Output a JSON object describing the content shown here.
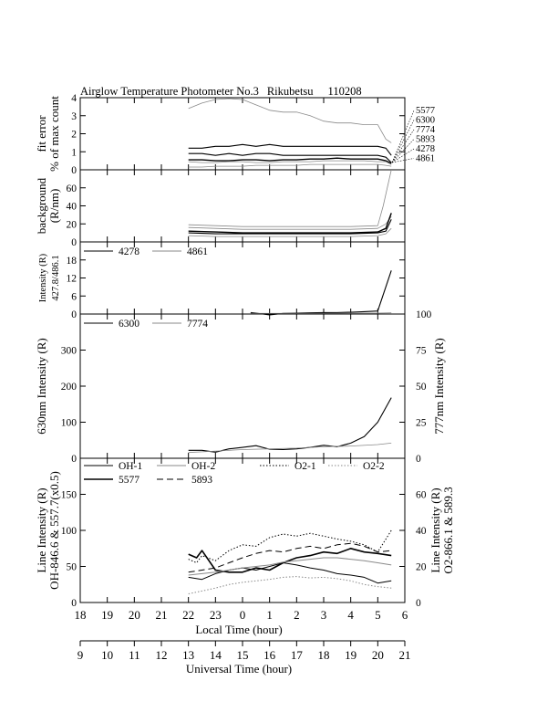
{
  "title": {
    "instrument": "Airglow Temperature Photometer No.3",
    "station": "Rikubetsu",
    "date": "110208"
  },
  "x_axes": {
    "local": {
      "label": "Local Time (hour)",
      "ticks": [
        "18",
        "19",
        "20",
        "21",
        "22",
        "23",
        "0",
        "1",
        "2",
        "3",
        "4",
        "5",
        "6"
      ]
    },
    "universal": {
      "label": "Universal Time (hour)",
      "ticks": [
        "9",
        "10",
        "11",
        "12",
        "13",
        "14",
        "15",
        "16",
        "17",
        "18",
        "19",
        "20",
        "21"
      ]
    }
  },
  "colors": {
    "ink": "#000000",
    "light": "#8a8a8a"
  },
  "chart_data": [
    {
      "id": "fit_error",
      "type": "line",
      "ylabel": [
        "fit error",
        "% of max count"
      ],
      "ylim": [
        0,
        4
      ],
      "yticks": [
        0,
        1,
        2,
        3,
        4
      ],
      "legend_right": [
        "5577",
        "6300",
        "7774",
        "5893",
        "4278",
        "4861"
      ],
      "series": [
        {
          "color": "light",
          "width": 0.8,
          "x": [
            22.0,
            22.5,
            23.0,
            23.5,
            0.0,
            0.5,
            1.0,
            1.5,
            2.0,
            2.5,
            3.0,
            3.5,
            4.0,
            4.5,
            5.0,
            5.3,
            5.5
          ],
          "y": [
            3.4,
            3.7,
            3.9,
            3.95,
            3.9,
            3.6,
            3.3,
            3.2,
            3.2,
            3.0,
            2.7,
            2.6,
            2.6,
            2.5,
            2.5,
            1.7,
            1.5
          ]
        },
        {
          "color": "ink",
          "width": 1.1,
          "x": [
            22.0,
            22.5,
            23.0,
            23.5,
            0.0,
            0.5,
            1.0,
            1.5,
            2.0,
            2.5,
            3.0,
            3.5,
            4.0,
            4.5,
            5.0,
            5.3,
            5.5
          ],
          "y": [
            1.2,
            1.2,
            1.3,
            1.3,
            1.4,
            1.3,
            1.4,
            1.3,
            1.3,
            1.3,
            1.3,
            1.3,
            1.3,
            1.3,
            1.3,
            1.2,
            0.8
          ]
        },
        {
          "color": "ink",
          "width": 1.1,
          "x": [
            22.0,
            22.5,
            23.0,
            23.5,
            0.0,
            0.5,
            1.0,
            1.5,
            2.0,
            2.5,
            3.0,
            3.5,
            4.0,
            4.5,
            5.0,
            5.3,
            5.5
          ],
          "y": [
            0.9,
            0.9,
            0.8,
            0.9,
            0.8,
            0.9,
            0.9,
            0.8,
            0.8,
            0.8,
            0.8,
            0.8,
            0.8,
            0.8,
            0.8,
            0.7,
            0.4
          ]
        },
        {
          "color": "ink",
          "width": 1.4,
          "x": [
            22.0,
            22.5,
            23.0,
            23.5,
            0.0,
            0.5,
            1.0,
            1.5,
            2.0,
            2.5,
            3.0,
            3.5,
            4.0,
            4.5,
            5.0,
            5.3,
            5.5
          ],
          "y": [
            0.55,
            0.55,
            0.5,
            0.5,
            0.55,
            0.55,
            0.5,
            0.55,
            0.55,
            0.6,
            0.6,
            0.65,
            0.6,
            0.6,
            0.6,
            0.5,
            0.35
          ]
        },
        {
          "color": "light",
          "width": 0.8,
          "x": [
            22.0,
            22.5,
            23.0,
            23.5,
            0.0,
            0.5,
            1.0,
            1.5,
            2.0,
            2.5,
            3.0,
            3.5,
            4.0,
            4.5,
            5.0,
            5.3,
            5.5
          ],
          "y": [
            0.45,
            0.4,
            0.4,
            0.45,
            0.45,
            0.4,
            0.4,
            0.45,
            0.45,
            0.45,
            0.5,
            0.5,
            0.5,
            0.5,
            0.45,
            0.45,
            0.3
          ]
        },
        {
          "color": "light",
          "width": 0.8,
          "x": [
            22.0,
            22.5,
            23.0,
            23.5,
            0.0,
            0.5,
            1.0,
            1.5,
            2.0,
            2.5,
            3.0,
            3.5,
            4.0,
            4.5,
            5.0,
            5.3,
            5.5
          ],
          "y": [
            0.15,
            0.15,
            0.2,
            0.2,
            0.2,
            0.25,
            0.25,
            0.25,
            0.25,
            0.3,
            0.3,
            0.3,
            0.3,
            0.3,
            0.3,
            0.25,
            0.2
          ]
        }
      ]
    },
    {
      "id": "background",
      "type": "line",
      "ylabel": [
        "background",
        "(R/nm)"
      ],
      "ylim": [
        0,
        80
      ],
      "yticks": [
        0,
        20,
        40,
        60
      ],
      "series": [
        {
          "color": "light",
          "width": 0.8,
          "x": [
            22.0,
            23.0,
            0.0,
            1.0,
            2.0,
            3.0,
            4.0,
            5.0,
            5.2,
            5.5
          ],
          "y": [
            19,
            18,
            17,
            17,
            17,
            17,
            17,
            18,
            40,
            80
          ]
        },
        {
          "color": "light",
          "width": 0.8,
          "x": [
            22.0,
            23.0,
            0.0,
            1.0,
            2.0,
            3.0,
            4.0,
            5.0,
            5.3,
            5.5
          ],
          "y": [
            16,
            15,
            14,
            14,
            14,
            14,
            14,
            15,
            20,
            28
          ]
        },
        {
          "color": "ink",
          "width": 1.4,
          "x": [
            22.0,
            23.0,
            0.0,
            1.0,
            2.0,
            3.0,
            4.0,
            5.0,
            5.3,
            5.5
          ],
          "y": [
            12,
            11,
            10,
            10,
            10,
            10,
            10,
            11,
            15,
            32
          ]
        },
        {
          "color": "ink",
          "width": 1.1,
          "x": [
            22.0,
            23.0,
            0.0,
            1.0,
            2.0,
            3.0,
            4.0,
            5.0,
            5.3,
            5.5
          ],
          "y": [
            10,
            9,
            9,
            9,
            9,
            9,
            9,
            10,
            12,
            25
          ]
        },
        {
          "color": "light",
          "width": 0.8,
          "x": [
            22.0,
            23.0,
            0.0,
            1.0,
            2.0,
            3.0,
            4.0,
            5.0,
            5.3,
            5.5
          ],
          "y": [
            7,
            6,
            6,
            6,
            6,
            6,
            6,
            7,
            9,
            15
          ]
        }
      ]
    },
    {
      "id": "intensity_4278_4861",
      "type": "line",
      "ylabel": [
        "Intensity (R)",
        "427.8/486.1"
      ],
      "ylim": [
        0,
        24
      ],
      "yticks": [
        0,
        6,
        12,
        18
      ],
      "legend": [
        {
          "name": "4278",
          "color": "ink"
        },
        {
          "name": "4861",
          "color": "light"
        }
      ],
      "series": [
        {
          "name": "4278",
          "color": "ink",
          "width": 1.1,
          "x": [
            0.3,
            0.5,
            1.0,
            1.5,
            2.0,
            2.5,
            3.0,
            3.5,
            4.0,
            4.5,
            5.0,
            5.5
          ],
          "y": [
            0.5,
            0.3,
            -0.3,
            0.2,
            0.3,
            0.4,
            0.5,
            0.5,
            0.6,
            0.8,
            1.0,
            14.5
          ]
        },
        {
          "name": "4861",
          "color": "light",
          "width": 0.8,
          "x": [
            0.3,
            1.0,
            2.0,
            3.0,
            4.0,
            5.0,
            5.5
          ],
          "y": [
            0.2,
            0.2,
            0.2,
            0.2,
            0.3,
            0.3,
            0.4
          ]
        }
      ]
    },
    {
      "id": "intensity_6300_7774",
      "type": "line",
      "ylabel_left": "630nm Intensity (R)",
      "ylabel_right": "777nm Intensity (R)",
      "ylim_left": [
        0,
        400
      ],
      "ylim_right": [
        0,
        100
      ],
      "yticks_left": [
        0,
        100,
        200,
        300
      ],
      "yticks_right": [
        0,
        25,
        50,
        75,
        100
      ],
      "legend": [
        {
          "name": "6300",
          "color": "ink"
        },
        {
          "name": "7774",
          "color": "light"
        }
      ],
      "series": [
        {
          "name": "6300",
          "color": "ink",
          "width": 1.1,
          "axis": "left",
          "x": [
            22.0,
            22.5,
            23.0,
            23.5,
            0.0,
            0.5,
            1.0,
            1.5,
            2.0,
            2.5,
            3.0,
            3.5,
            4.0,
            4.5,
            5.0,
            5.5
          ],
          "y": [
            22,
            22,
            17,
            26,
            30,
            35,
            25,
            24,
            26,
            30,
            36,
            32,
            42,
            60,
            100,
            168
          ]
        },
        {
          "name": "7774",
          "color": "light",
          "width": 0.8,
          "axis": "right",
          "x": [
            22.0,
            23.0,
            0.0,
            1.0,
            2.0,
            3.0,
            4.0,
            5.0,
            5.5
          ],
          "y": [
            4,
            5,
            6,
            6.5,
            7,
            8,
            8.5,
            9.5,
            10.5
          ]
        }
      ]
    },
    {
      "id": "line_intensity",
      "type": "line",
      "ylabel_left": [
        "Line Intensity (R)",
        "OH-846.6 & 557.7(x0.5)"
      ],
      "ylabel_right": [
        "Line Intensity (R)",
        "O2-866.1 & 589.3"
      ],
      "ylim_left": [
        0,
        200
      ],
      "ylim_right": [
        0,
        80
      ],
      "yticks_left": [
        0,
        50,
        100,
        150
      ],
      "yticks_right": [
        0,
        20,
        40,
        60
      ],
      "legend": [
        {
          "name": "OH-1",
          "style": "solid",
          "color": "ink"
        },
        {
          "name": "OH-2",
          "style": "solid",
          "color": "light"
        },
        {
          "name": "O2-1",
          "style": "dotted",
          "color": "ink"
        },
        {
          "name": "O2-2",
          "style": "dotted",
          "color": "light"
        },
        {
          "name": "5577",
          "style": "solid-thick",
          "color": "ink"
        },
        {
          "name": "5893",
          "style": "dashed",
          "color": "ink"
        }
      ],
      "series": [
        {
          "name": "5577",
          "style": "solid-thick",
          "axis": "left",
          "x": [
            22.0,
            22.3,
            22.5,
            23.0,
            23.5,
            0.0,
            0.5,
            1.0,
            1.5,
            2.0,
            2.5,
            3.0,
            3.5,
            4.0,
            4.5,
            5.0,
            5.5
          ],
          "y": [
            67,
            62,
            72,
            45,
            42,
            42,
            48,
            45,
            55,
            62,
            65,
            70,
            68,
            75,
            70,
            68,
            65
          ]
        },
        {
          "name": "OH-1",
          "style": "solid",
          "axis": "left",
          "x": [
            22.0,
            22.5,
            23.0,
            23.5,
            0.0,
            0.5,
            1.0,
            1.5,
            2.0,
            2.5,
            3.0,
            3.5,
            4.0,
            4.5,
            5.0,
            5.5
          ],
          "y": [
            35,
            32,
            40,
            45,
            48,
            45,
            50,
            55,
            52,
            48,
            45,
            40,
            38,
            35,
            27,
            30
          ]
        },
        {
          "name": "OH-2",
          "style": "solid-light",
          "axis": "left",
          "x": [
            22.0,
            22.5,
            23.0,
            23.5,
            0.0,
            0.5,
            1.0,
            1.5,
            2.0,
            2.5,
            3.0,
            3.5,
            4.0,
            4.5,
            5.0,
            5.5
          ],
          "y": [
            38,
            40,
            42,
            45,
            48,
            50,
            52,
            56,
            58,
            60,
            62,
            62,
            60,
            58,
            55,
            52
          ]
        },
        {
          "name": "5893",
          "style": "dashed",
          "axis": "left",
          "x": [
            22.0,
            22.5,
            23.0,
            23.5,
            0.0,
            0.5,
            1.0,
            1.5,
            2.0,
            2.5,
            3.0,
            3.5,
            4.0,
            4.5,
            5.0,
            5.5
          ],
          "y": [
            42,
            45,
            48,
            55,
            62,
            68,
            72,
            70,
            75,
            78,
            75,
            80,
            82,
            78,
            70,
            72
          ]
        },
        {
          "name": "O2-1",
          "style": "dotted",
          "axis": "left",
          "x": [
            22.0,
            22.3,
            22.5,
            23.0,
            23.5,
            0.0,
            0.5,
            1.0,
            1.5,
            2.0,
            2.5,
            3.0,
            3.5,
            4.0,
            4.5,
            5.0,
            5.5
          ],
          "y": [
            60,
            55,
            65,
            58,
            72,
            80,
            78,
            90,
            95,
            92,
            96,
            92,
            88,
            85,
            80,
            70,
            100
          ]
        },
        {
          "name": "O2-2",
          "style": "dotted-light",
          "axis": "left",
          "x": [
            22.0,
            22.5,
            23.0,
            23.5,
            0.0,
            0.5,
            1.0,
            1.5,
            2.0,
            2.5,
            3.0,
            3.5,
            4.0,
            4.5,
            5.0,
            5.5
          ],
          "y": [
            12,
            16,
            20,
            25,
            28,
            30,
            32,
            35,
            36,
            34,
            35,
            33,
            30,
            25,
            22,
            20
          ]
        }
      ]
    }
  ]
}
